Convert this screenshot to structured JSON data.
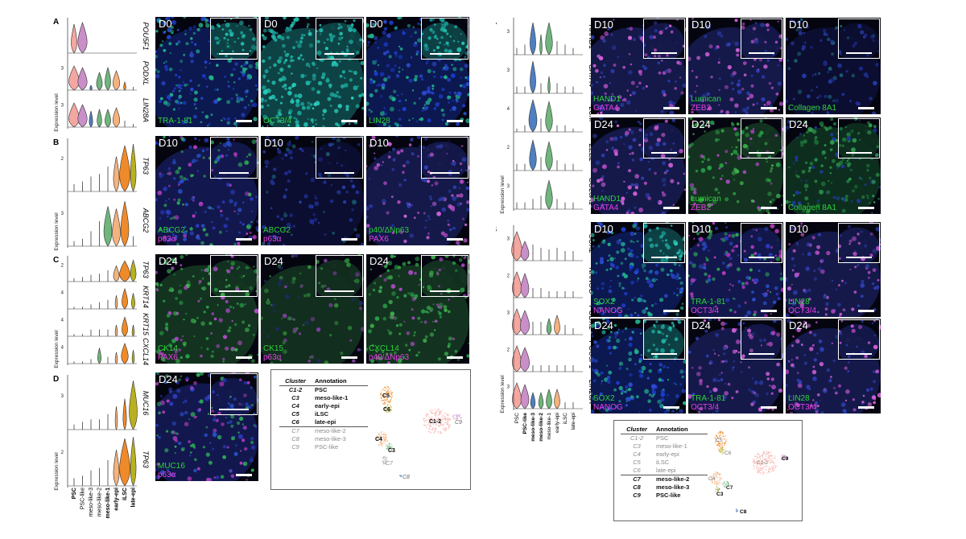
{
  "colors": {
    "psc": "#f4a6a0",
    "psc_like": "#c98fc8",
    "meso1": "#4e7fc0",
    "meso2": "#6fb57c",
    "early_epi": "#f4b27e",
    "ilsc": "#ef8a2a",
    "late_epi": "#b8b020",
    "dapi": "#2437b8",
    "green": "#2fd33a",
    "magenta": "#ea3ee6"
  },
  "violin_expression_label": "Expression level",
  "left_cell_types": [
    "PSC",
    "PSC-like",
    "meso-like-3",
    "meso-like-2",
    "meso-like-1",
    "early-epi",
    "iLSC",
    "late-epi"
  ],
  "right_cell_types": [
    "PSC",
    "PSC-like",
    "meso-like-3",
    "meso-like-2",
    "meso-like-1",
    "early-epi",
    "iLSC",
    "late-epi"
  ],
  "left_panels": [
    {
      "letter": "A",
      "genes": [
        "POU5F1",
        "PODXL",
        "LIN28A"
      ],
      "tick_labels": [
        "",
        "3",
        "3"
      ],
      "images": [
        {
          "tp": "D0",
          "lines": [
            {
              "text": "TRA-1-81",
              "color": "green"
            }
          ],
          "style": "colony"
        },
        {
          "tp": "D0",
          "lines": [
            {
              "text": "OCT3/4",
              "color": "green"
            }
          ],
          "style": "dense"
        },
        {
          "tp": "D0",
          "lines": [
            {
              "text": "LIN28",
              "color": "green"
            }
          ],
          "style": "colony"
        }
      ]
    },
    {
      "letter": "B",
      "genes": [
        "TP63",
        "ABCG2"
      ],
      "tick_labels": [
        "2",
        "3"
      ],
      "images": [
        {
          "tp": "D10",
          "lines": [
            {
              "text": "ABCG2",
              "color": "green"
            },
            {
              "text": "p63α",
              "color": "magenta"
            }
          ],
          "style": "mixed"
        },
        {
          "tp": "D10",
          "lines": [
            {
              "text": "ABCG2",
              "color": "green"
            },
            {
              "text": "p63α",
              "color": "magenta"
            }
          ],
          "style": "sparse"
        },
        {
          "tp": "D10",
          "lines": [
            {
              "text": "p40/ΔNp63",
              "color": "green"
            },
            {
              "text": "PAX6",
              "color": "magenta"
            }
          ],
          "style": "magdots"
        }
      ]
    },
    {
      "letter": "C",
      "genes": [
        "TP63",
        "KRT14",
        "KRT15",
        "CXCL14"
      ],
      "tick_labels": [
        "2",
        "4",
        "4",
        "4"
      ],
      "images": [
        {
          "tp": "D24",
          "lines": [
            {
              "text": "CK14",
              "color": "green"
            },
            {
              "text": "PAX6",
              "color": "magenta"
            }
          ],
          "style": "cells"
        },
        {
          "tp": "D24",
          "lines": [
            {
              "text": "CK15",
              "color": "green"
            },
            {
              "text": "p63α",
              "color": "magenta"
            }
          ],
          "style": "sparsecells"
        },
        {
          "tp": "D24",
          "lines": [
            {
              "text": "CXCL14",
              "color": "green"
            },
            {
              "text": "p40/ΔNp63",
              "color": "magenta"
            }
          ],
          "style": "cells"
        }
      ]
    },
    {
      "letter": "D",
      "genes": [
        "MUC16",
        "TP63"
      ],
      "tick_labels": [
        "3",
        "2"
      ],
      "images": [
        {
          "tp": "D24",
          "lines": [
            {
              "text": "MUC16",
              "color": "green"
            },
            {
              "text": "p63α",
              "color": "magenta"
            }
          ],
          "style": "mixed"
        }
      ]
    }
  ],
  "right_panels": [
    {
      "letter": "A",
      "genes": [
        "HAND1",
        "GATA4",
        "LUM",
        "ZEB2",
        "COL8A1"
      ],
      "tick_labels": [
        "3",
        "3",
        "4",
        "2",
        "3"
      ],
      "rows": [
        [
          {
            "tp": "D10",
            "lines": [
              {
                "text": "HAND1",
                "color": "green"
              },
              {
                "text": "GATA4",
                "color": "magenta"
              }
            ],
            "style": "magdots"
          },
          {
            "tp": "D10",
            "lines": [
              {
                "text": "Lumican",
                "color": "green"
              },
              {
                "text": "ZEB2",
                "color": "magenta"
              }
            ],
            "style": "magdots"
          },
          {
            "tp": "D10",
            "lines": [
              {
                "text": "Collagen 8A1",
                "color": "green"
              }
            ],
            "style": "sparse"
          }
        ],
        [
          {
            "tp": "D24",
            "lines": [
              {
                "text": "HAND1",
                "color": "green"
              },
              {
                "text": "GATA4",
                "color": "magenta"
              }
            ],
            "style": "magdots"
          },
          {
            "tp": "D24",
            "lines": [
              {
                "text": "Lumican",
                "color": "green"
              },
              {
                "text": "ZEB2",
                "color": "magenta"
              }
            ],
            "style": "cells"
          },
          {
            "tp": "D24",
            "lines": [
              {
                "text": "Collagen 8A1",
                "color": "green"
              }
            ],
            "style": "greenhaze"
          }
        ]
      ]
    },
    {
      "letter": "B",
      "genes": [
        "SOX2",
        "NANOG",
        "PODXL",
        "POU5F1",
        "LIN28A"
      ],
      "tick_labels": [
        "3",
        "2",
        "3",
        "2",
        "3"
      ],
      "rows": [
        [
          {
            "tp": "D10",
            "lines": [
              {
                "text": "SOX2",
                "color": "green"
              },
              {
                "text": "NANOG",
                "color": "magenta"
              }
            ],
            "style": "colony"
          },
          {
            "tp": "D10",
            "lines": [
              {
                "text": "TRA-1-81",
                "color": "green"
              },
              {
                "text": "OCT3/4",
                "color": "magenta"
              }
            ],
            "style": "mixed"
          },
          {
            "tp": "D10",
            "lines": [
              {
                "text": "LIN28",
                "color": "green"
              },
              {
                "text": "OCT3/4",
                "color": "magenta"
              }
            ],
            "style": "magdots"
          }
        ],
        [
          {
            "tp": "D24",
            "lines": [
              {
                "text": "SOX2",
                "color": "green"
              },
              {
                "text": "NANOG",
                "color": "magenta"
              }
            ],
            "style": "colony"
          },
          {
            "tp": "D24",
            "lines": [
              {
                "text": "TRA-1-81",
                "color": "green"
              },
              {
                "text": "OCT3/4",
                "color": "magenta"
              }
            ],
            "style": "magdots"
          },
          {
            "tp": "D24",
            "lines": [
              {
                "text": "LIN28",
                "color": "green"
              },
              {
                "text": "OCT3/4",
                "color": "magenta"
              }
            ],
            "style": "magdots"
          }
        ]
      ]
    }
  ],
  "left_legend": {
    "header": {
      "cluster": "Cluster",
      "annotation": "Annotation"
    },
    "rows": [
      {
        "cluster": "C1-2",
        "annotation": "PSC",
        "bold": true
      },
      {
        "cluster": "C3",
        "annotation": "meso-like-1",
        "bold": true
      },
      {
        "cluster": "C4",
        "annotation": "early-epi",
        "bold": true
      },
      {
        "cluster": "C5",
        "annotation": "iLSC",
        "bold": true
      },
      {
        "cluster": "C6",
        "annotation": "late-epi",
        "bold": true
      },
      {
        "cluster": "C7",
        "annotation": "meso-like-2",
        "bold": false
      },
      {
        "cluster": "C8",
        "annotation": "meso-like-3",
        "bold": false
      },
      {
        "cluster": "C9",
        "annotation": "PSC-like",
        "bold": false
      }
    ],
    "umap_labels": {
      "c5": "C5",
      "c6": "C6",
      "c12": "C1-2",
      "c9": "C9",
      "c4": "C4",
      "c3": "C3",
      "c7": "C7",
      "c8": "C8"
    }
  },
  "right_legend": {
    "header": {
      "cluster": "Cluster",
      "annotation": "Annotation"
    },
    "rows": [
      {
        "cluster": "C1-2",
        "annotation": "PSC",
        "bold": false
      },
      {
        "cluster": "C3",
        "annotation": "meso-like-1",
        "bold": false
      },
      {
        "cluster": "C4",
        "annotation": "early-epi",
        "bold": false
      },
      {
        "cluster": "C5",
        "annotation": "iLSC",
        "bold": false
      },
      {
        "cluster": "C6",
        "annotation": "late-epi",
        "bold": false
      },
      {
        "cluster": "C7",
        "annotation": "meso-like-2",
        "bold": true
      },
      {
        "cluster": "C8",
        "annotation": "meso-like-3",
        "bold": true
      },
      {
        "cluster": "C9",
        "annotation": "PSC-like",
        "bold": true
      }
    ],
    "umap_labels": {
      "c5": "C5",
      "c6": "C6",
      "c12": "C1-2",
      "c9": "C9",
      "c4": "C4",
      "c3": "C3",
      "c7": "C7",
      "c8": "C8"
    }
  }
}
